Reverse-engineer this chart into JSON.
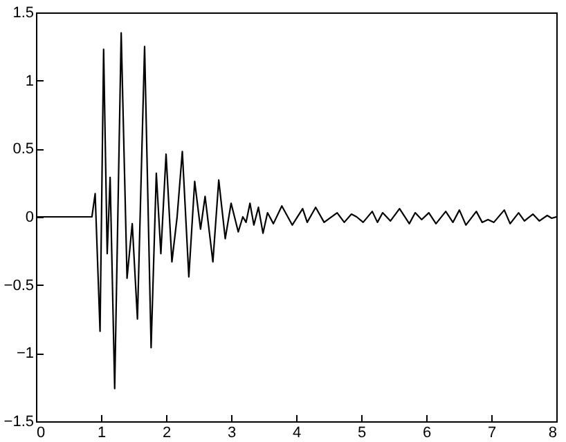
{
  "chart_data": {
    "type": "line",
    "xlim": [
      0,
      8
    ],
    "ylim": [
      -1.5,
      1.5
    ],
    "xticks": [
      0,
      1,
      2,
      3,
      4,
      5,
      6,
      7,
      8
    ],
    "yticks": [
      {
        "value": -1.5,
        "label": "−1.5"
      },
      {
        "value": -1,
        "label": "−1"
      },
      {
        "value": -0.5,
        "label": "−0.5"
      },
      {
        "value": 0,
        "label": "0"
      },
      {
        "value": 0.5,
        "label": "0.5"
      },
      {
        "value": 1,
        "label": "1"
      },
      {
        "value": 1.5,
        "label": "1.5"
      }
    ],
    "grid": false,
    "marker": "none",
    "line_style": "solid",
    "series": [
      {
        "color": "#000000",
        "x": [
          0,
          0.86,
          0.91,
          0.985,
          1.04,
          1.095,
          1.14,
          1.21,
          1.31,
          1.4,
          1.48,
          1.56,
          1.67,
          1.77,
          1.85,
          1.92,
          2.0,
          2.09,
          2.17,
          2.25,
          2.35,
          2.44,
          2.53,
          2.6,
          2.72,
          2.81,
          2.91,
          3.0,
          3.11,
          3.18,
          3.23,
          3.29,
          3.35,
          3.42,
          3.49,
          3.56,
          3.65,
          3.78,
          3.94,
          4.1,
          4.17,
          4.3,
          4.43,
          4.63,
          4.74,
          4.85,
          4.93,
          5.03,
          5.17,
          5.25,
          5.33,
          5.45,
          5.59,
          5.74,
          5.83,
          5.93,
          6.04,
          6.15,
          6.3,
          6.41,
          6.51,
          6.61,
          6.77,
          6.86,
          6.95,
          7.04,
          7.2,
          7.29,
          7.42,
          7.51,
          7.64,
          7.74,
          7.86,
          7.93,
          8.0
        ],
        "values": [
          0,
          0,
          0.17,
          -0.84,
          1.23,
          -0.27,
          0.29,
          -1.26,
          1.35,
          -0.45,
          -0.05,
          -0.75,
          1.25,
          -0.96,
          0.32,
          -0.27,
          0.46,
          -0.33,
          0,
          0.48,
          -0.44,
          0.26,
          -0.09,
          0.15,
          -0.33,
          0.27,
          -0.16,
          0.1,
          -0.11,
          0,
          -0.04,
          0.1,
          -0.06,
          0.07,
          -0.12,
          0.03,
          -0.05,
          0.08,
          -0.06,
          0.06,
          -0.04,
          0.07,
          -0.04,
          0.03,
          -0.04,
          0.02,
          0,
          -0.04,
          0.04,
          -0.04,
          0.03,
          -0.03,
          0.06,
          -0.05,
          0.03,
          -0.02,
          0.03,
          -0.05,
          0.04,
          -0.04,
          0.05,
          -0.06,
          0.04,
          -0.04,
          -0.02,
          -0.04,
          0.05,
          -0.05,
          0.03,
          -0.03,
          0.02,
          -0.03,
          0.01,
          -0.01,
          0
        ]
      }
    ]
  }
}
